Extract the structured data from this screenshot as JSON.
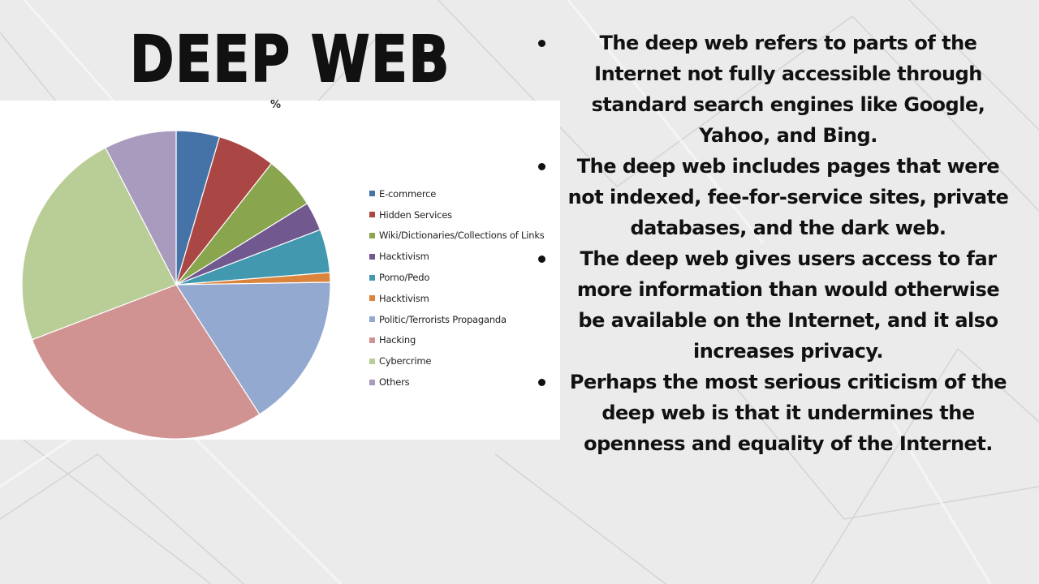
{
  "slide": {
    "title": "Deep Web",
    "bullets": [
      "The deep web refers to parts of the Internet not fully accessible through standard search engines like Google, Yahoo, and Bing.",
      "The deep web includes pages that were not indexed, fee-for-service sites, private databases, and the dark web.",
      "The deep web gives users access to far more information than would otherwise be available on the Internet, and it also increases privacy.",
      "Perhaps the most serious criticism of the deep web is that it undermines the openness and equality of the Internet."
    ]
  },
  "chart_data": {
    "type": "pie",
    "title": "%",
    "legend_position": "right",
    "categories": [
      "E-commerce",
      "Hidden Services",
      "Wiki/Dictionaries/Collections of Links",
      "Hacktivism",
      "Porno/Pedo",
      "Hacktivism",
      "Politic/Terrorists Propaganda",
      "Hacking",
      "Cybercrime",
      "Others"
    ],
    "values": [
      4.5,
      6,
      5.5,
      3,
      4.5,
      1,
      16,
      28,
      23,
      7.5
    ],
    "colors": [
      "#4572a7",
      "#aa4643",
      "#89a54e",
      "#71588f",
      "#4198af",
      "#db843d",
      "#93a9cf",
      "#d19392",
      "#b9cd96",
      "#a99bbd"
    ]
  }
}
